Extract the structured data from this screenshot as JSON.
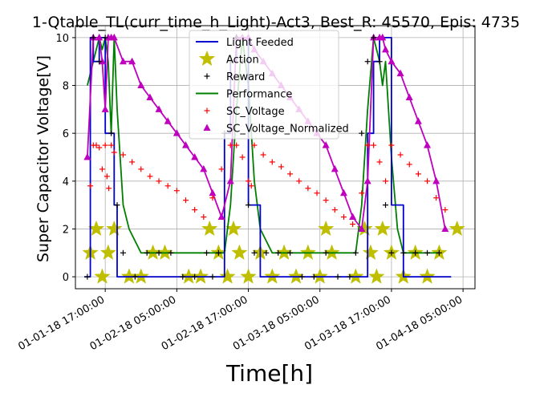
{
  "chart_data": {
    "type": "line",
    "title": "1-Qtable_TL(curr_time_h_Light)-Act3, Best_R: 45570, Epis: 4735",
    "xlabel": "Time[h]",
    "ylabel": "Super Capacitor Voltage[V]",
    "x_unit": "hours",
    "xlim": [
      -5,
      62
    ],
    "ylim": [
      -0.5,
      10.5
    ],
    "grid": true,
    "legend_position": "top-center",
    "x_ticks": [
      {
        "value": 0,
        "label": "01-01-18 17:00:00"
      },
      {
        "value": 12,
        "label": "01-02-18 05:00:00"
      },
      {
        "value": 24,
        "label": "01-02-18 17:00:00"
      },
      {
        "value": 36,
        "label": "01-03-18 05:00:00"
      },
      {
        "value": 48,
        "label": "01-03-18 17:00:00"
      },
      {
        "value": 60,
        "label": "01-04-18 05:00:00"
      }
    ],
    "y_ticks": [
      0,
      2,
      4,
      6,
      8,
      10
    ],
    "series": [
      {
        "name": "Light Feeded",
        "style": "line",
        "color": "#0000cc",
        "x": [
          -3.5,
          -2.5,
          -2.5,
          -2,
          -2,
          -1,
          -1,
          0,
          0,
          1.5,
          1.5,
          2,
          2,
          20,
          20,
          21,
          21,
          22,
          22,
          24,
          24,
          26,
          26,
          44,
          44,
          45,
          45,
          46,
          46,
          48,
          48,
          50,
          50,
          58
        ],
        "values": [
          0,
          0,
          10,
          10,
          9,
          9,
          10,
          10,
          6,
          6,
          3,
          3,
          0,
          0,
          6,
          6,
          9,
          9,
          10,
          10,
          3,
          3,
          0,
          0,
          6,
          6,
          9,
          9,
          10,
          10,
          3,
          3,
          0,
          0
        ]
      },
      {
        "name": "Action",
        "style": "star",
        "color": "#bfbf00",
        "x": [
          -2.5,
          -1.5,
          -0.5,
          0.5,
          1.5,
          4,
          6,
          8,
          10,
          14,
          16,
          17.5,
          19,
          20.5,
          21.5,
          22.5,
          24,
          26,
          28,
          30,
          32,
          34,
          36,
          37,
          38,
          42,
          43.5,
          44.5,
          45.5,
          46.5,
          48,
          50,
          52,
          54,
          56,
          59
        ],
        "values": [
          1,
          2,
          0,
          1,
          2,
          0,
          0,
          1,
          1,
          0,
          0,
          2,
          1,
          0,
          2,
          1,
          0,
          1,
          0,
          1,
          0,
          1,
          0,
          2,
          1,
          0,
          2,
          1,
          0,
          2,
          1,
          0,
          1,
          0,
          1,
          2
        ]
      },
      {
        "name": "Reward",
        "style": "plus",
        "color": "#000000",
        "x": [
          -3,
          -2,
          -1,
          0,
          1,
          2,
          3,
          5,
          7,
          9,
          11,
          13,
          15,
          17,
          18,
          19,
          20,
          21,
          22,
          23,
          24,
          25,
          27,
          29,
          31,
          33,
          35,
          37,
          39,
          41,
          42,
          43,
          44,
          45,
          46,
          47,
          48,
          50,
          52,
          54,
          56
        ],
        "values": [
          0,
          10,
          9,
          10,
          6,
          3,
          1,
          0,
          1,
          1,
          1,
          0,
          0,
          1,
          0,
          1,
          6,
          9,
          10,
          9,
          3,
          1,
          1,
          1,
          1,
          0,
          0,
          1,
          0,
          0,
          1,
          6,
          9,
          10,
          9,
          3,
          1,
          1,
          1,
          1,
          1
        ]
      },
      {
        "name": "Performance",
        "style": "line",
        "color": "#008000",
        "x": [
          -3,
          -2,
          -1,
          -0.5,
          0,
          0.5,
          1,
          1.5,
          2,
          3,
          4,
          6,
          10,
          18,
          20,
          21,
          22,
          23,
          23.5,
          24,
          25,
          26,
          28,
          34,
          42,
          43,
          44,
          45,
          46,
          46.5,
          47,
          48,
          49,
          50,
          52,
          56
        ],
        "values": [
          8,
          9,
          10,
          9.5,
          10,
          9,
          6,
          10,
          7,
          3,
          2,
          1,
          1,
          1,
          1,
          3,
          7,
          10,
          9,
          8,
          4,
          2,
          1,
          1,
          1,
          3,
          7,
          10,
          9,
          8,
          9,
          5,
          2,
          1,
          1,
          1
        ]
      },
      {
        "name": "SC_Voltage",
        "style": "plus",
        "color": "#ff0000",
        "x": [
          -2.5,
          -2,
          -1.5,
          -1,
          -0.5,
          0,
          0.3,
          0.6,
          1,
          1.5,
          3,
          4.5,
          6,
          7.5,
          9,
          10.5,
          12,
          13.5,
          15,
          16.5,
          18,
          19.5,
          21,
          22,
          23,
          24,
          24.5,
          25,
          26.5,
          28,
          29.5,
          31,
          32.5,
          34,
          35.5,
          37,
          38.5,
          40,
          41.5,
          43,
          44,
          45,
          46,
          47,
          48,
          49.5,
          51,
          52.5,
          54,
          55.5,
          57
        ],
        "values": [
          3.8,
          5.5,
          5.5,
          5.4,
          4.5,
          5.5,
          4.2,
          3.7,
          5.5,
          5.2,
          5.1,
          4.8,
          4.5,
          4.2,
          4.0,
          3.8,
          3.6,
          3.2,
          2.8,
          2.5,
          3.3,
          4.5,
          5.5,
          5.5,
          5.0,
          4.0,
          3.8,
          5.5,
          5.1,
          4.8,
          4.6,
          4.3,
          4.0,
          3.7,
          3.5,
          3.2,
          2.8,
          2.5,
          2.2,
          3.5,
          5.5,
          5.5,
          4.8,
          4.0,
          5.5,
          5.1,
          4.7,
          4.3,
          4.0,
          3.3,
          2.8
        ]
      },
      {
        "name": "SC_Voltage_Normalized",
        "style": "triangle",
        "color": "#bf00bf",
        "x": [
          -3,
          -2,
          -1,
          -0.5,
          0,
          0.5,
          1,
          1.5,
          3,
          4.5,
          6,
          7.5,
          9,
          10.5,
          12,
          13.5,
          15,
          16.5,
          18,
          19.5,
          21,
          22,
          23,
          24,
          25,
          26.5,
          28,
          29.5,
          31,
          32.5,
          34,
          35.5,
          37,
          38.5,
          40,
          41.5,
          43,
          44,
          45,
          46,
          46.5,
          47,
          48,
          49.5,
          51,
          52.5,
          54,
          55.5,
          57
        ],
        "values": [
          5,
          10,
          10,
          9,
          7,
          10,
          10,
          10,
          9,
          9,
          8,
          7.5,
          7,
          6.5,
          6,
          5.5,
          5,
          4.5,
          3.5,
          2.5,
          4,
          10,
          10,
          10,
          9.5,
          9,
          8.5,
          8,
          7.5,
          7,
          6.5,
          6,
          5.5,
          4.5,
          3.5,
          2.5,
          2,
          4,
          10,
          10,
          10,
          9.5,
          9,
          8.5,
          7.5,
          6.5,
          5.5,
          4,
          2
        ]
      }
    ]
  }
}
